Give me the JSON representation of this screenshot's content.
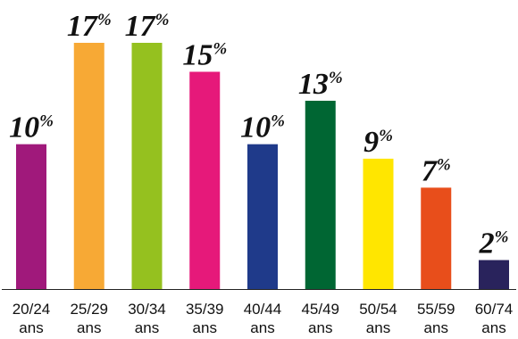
{
  "chart_data": {
    "type": "bar",
    "categories": [
      [
        "20/24",
        "ans"
      ],
      [
        "25/29",
        "ans"
      ],
      [
        "30/34",
        "ans"
      ],
      [
        "35/39",
        "ans"
      ],
      [
        "40/44",
        "ans"
      ],
      [
        "45/49",
        "ans"
      ],
      [
        "50/54",
        "ans"
      ],
      [
        "55/59",
        "ans"
      ],
      [
        "60/74",
        "ans"
      ]
    ],
    "values": [
      10,
      17,
      17,
      15,
      10,
      13,
      9,
      7,
      2
    ],
    "value_suffix": "%",
    "colors": [
      "#a0197b",
      "#f7a935",
      "#95c11f",
      "#e6197a",
      "#1f3a8a",
      "#006633",
      "#ffe600",
      "#e84e1b",
      "#29235c"
    ],
    "ylim": [
      0,
      17
    ],
    "grid": false,
    "legend": "none",
    "show_y_axis": false,
    "show_baseline": true
  }
}
